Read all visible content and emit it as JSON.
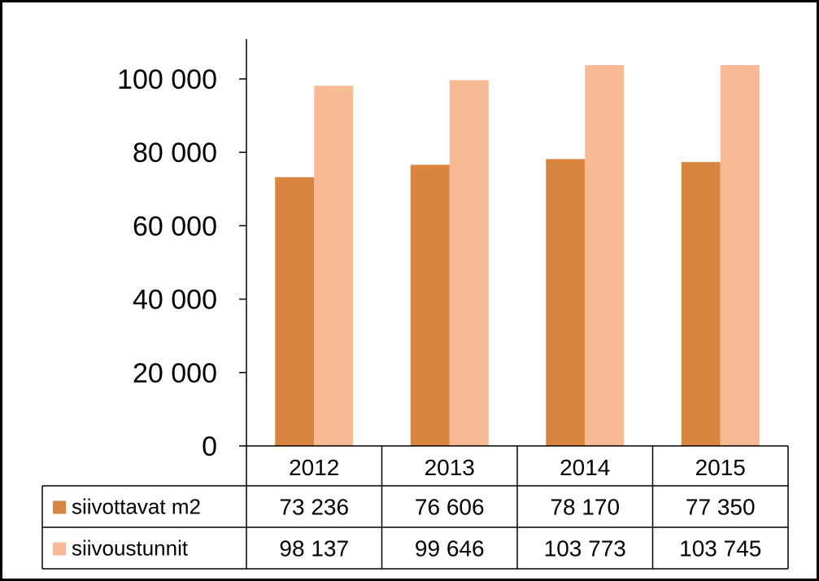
{
  "chart_data": {
    "type": "bar",
    "categories": [
      "2012",
      "2013",
      "2014",
      "2015"
    ],
    "series": [
      {
        "name": "siivottavat m2",
        "values": [
          73236,
          76606,
          78170,
          77350
        ],
        "labels": [
          "73 236",
          "76 606",
          "78 170",
          "77 350"
        ],
        "color": "#D9843F"
      },
      {
        "name": "siivoustunnit",
        "values": [
          98137,
          99646,
          103773,
          103745
        ],
        "labels": [
          "98 137",
          "99 646",
          "103 773",
          "103 745"
        ],
        "color": "#F8B995"
      }
    ],
    "ylim": [
      0,
      100000
    ],
    "yticks": [
      0,
      20000,
      40000,
      60000,
      80000,
      100000
    ],
    "ytick_labels": [
      "0",
      "20 000",
      "40 000",
      "60 000",
      "80 000",
      "100 000"
    ],
    "title": "",
    "xlabel": "",
    "ylabel": "",
    "grid": false,
    "legend": "data-table"
  }
}
